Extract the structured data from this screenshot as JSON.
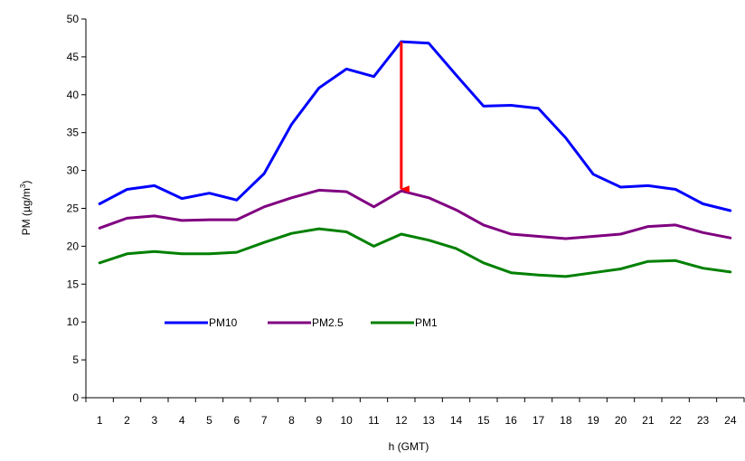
{
  "chart_data": {
    "type": "line",
    "title": "",
    "xlabel": "h (GMT)",
    "ylabel_main": "PM (µg/m",
    "ylabel_sup": "3",
    "ylabel_tail": ")",
    "ylim": [
      0,
      50
    ],
    "yticks": [
      0,
      5,
      10,
      15,
      20,
      25,
      30,
      35,
      40,
      45,
      50
    ],
    "categories": [
      "1",
      "2",
      "3",
      "4",
      "5",
      "6",
      "7",
      "8",
      "9",
      "10",
      "11",
      "12",
      "13",
      "14",
      "15",
      "16",
      "17",
      "18",
      "19",
      "20",
      "21",
      "22",
      "23",
      "24"
    ],
    "grid": false,
    "legend_position": "bottom-left-inside",
    "series": [
      {
        "name": "PM10",
        "color": "#0000ff",
        "values": [
          25.6,
          27.5,
          28.0,
          26.3,
          27.0,
          26.1,
          29.6,
          36.1,
          40.9,
          43.4,
          42.4,
          47.0,
          46.8,
          42.6,
          38.5,
          38.6,
          38.2,
          34.3,
          29.5,
          27.8,
          28.0,
          27.5,
          25.6,
          24.7
        ]
      },
      {
        "name": "PM2.5",
        "color": "#800080",
        "values": [
          22.4,
          23.7,
          24.0,
          23.4,
          23.5,
          23.5,
          25.2,
          26.4,
          27.4,
          27.2,
          25.2,
          27.3,
          26.4,
          24.8,
          22.8,
          21.6,
          21.3,
          21.0,
          21.3,
          21.6,
          22.6,
          22.8,
          21.8,
          21.1
        ]
      },
      {
        "name": "PM1",
        "color": "#008000",
        "values": [
          17.8,
          19.0,
          19.3,
          19.0,
          19.0,
          19.2,
          20.5,
          21.7,
          22.3,
          21.9,
          20.0,
          21.6,
          20.8,
          19.7,
          17.8,
          16.5,
          16.2,
          16.0,
          16.5,
          17.0,
          18.0,
          18.1,
          17.1,
          16.6
        ]
      }
    ],
    "annotation": {
      "type": "arrow",
      "color": "#ff0000",
      "x": "12",
      "from_y": 47.0,
      "to_y": 27.3
    }
  }
}
